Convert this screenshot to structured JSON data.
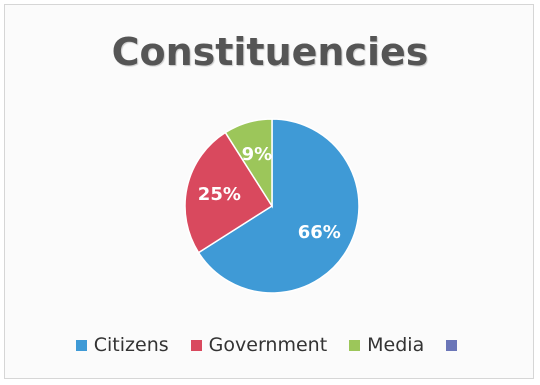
{
  "chart_data": {
    "type": "pie",
    "title": "Constituencies",
    "slices": [
      {
        "label": "Citizens",
        "value": 66,
        "display": "66%",
        "color": "#3f9ad6"
      },
      {
        "label": "Government",
        "value": 25,
        "display": "25%",
        "color": "#d9495e"
      },
      {
        "label": "Media",
        "value": 9,
        "display": "9%",
        "color": "#9cc65a"
      },
      {
        "label": "",
        "value": 0,
        "display": "",
        "color": "#6b76b8"
      }
    ],
    "legend_position": "bottom"
  }
}
